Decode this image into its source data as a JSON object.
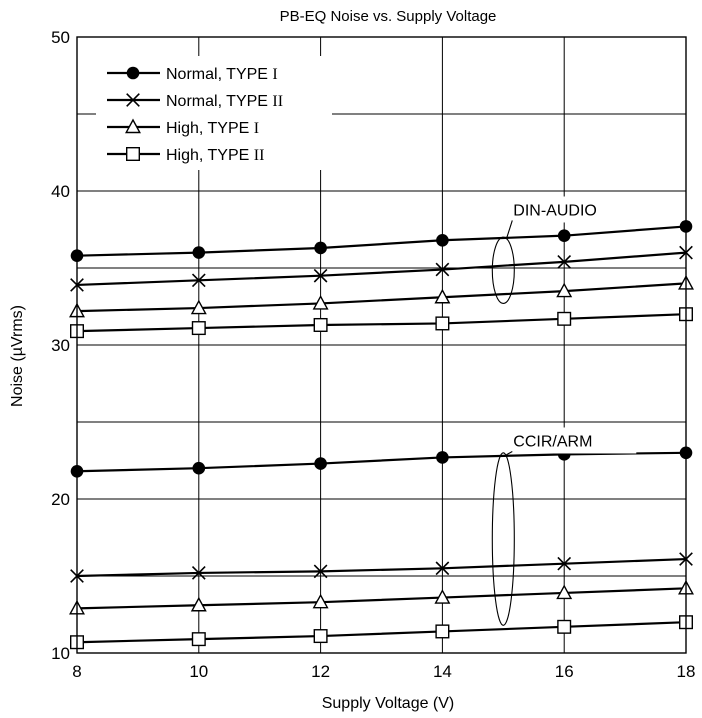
{
  "chart_data": {
    "type": "line",
    "title": "PB-EQ Noise vs. Supply Voltage",
    "xlabel": "Supply Voltage  (V)",
    "ylabel": "Noise  (µVrms)",
    "xlim": [
      8,
      18
    ],
    "ylim": [
      10,
      50
    ],
    "xticks": [
      8,
      10,
      12,
      14,
      16,
      18
    ],
    "yticks": [
      10,
      20,
      30,
      40,
      50
    ],
    "grid": true,
    "legend_position": "top-left",
    "x": [
      8,
      10,
      12,
      14,
      16,
      18
    ],
    "legend": [
      {
        "prefix": "Normal, TYPE ",
        "roman": "I",
        "marker": "circle"
      },
      {
        "prefix": "Normal, TYPE ",
        "roman": "II",
        "marker": "cross"
      },
      {
        "prefix": "High, TYPE ",
        "roman": "I",
        "marker": "triangle"
      },
      {
        "prefix": "High, TYPE ",
        "roman": "II",
        "marker": "square"
      }
    ],
    "series": [
      {
        "name": "Normal, TYPE I",
        "group": "DIN-AUDIO",
        "marker": "circle",
        "values": [
          35.8,
          36.0,
          36.3,
          36.8,
          37.1,
          37.7
        ]
      },
      {
        "name": "Normal, TYPE II",
        "group": "DIN-AUDIO",
        "marker": "cross",
        "values": [
          33.9,
          34.2,
          34.5,
          34.9,
          35.4,
          36.0
        ]
      },
      {
        "name": "High, TYPE I",
        "group": "DIN-AUDIO",
        "marker": "triangle",
        "values": [
          32.2,
          32.4,
          32.7,
          33.1,
          33.5,
          34.0
        ]
      },
      {
        "name": "High, TYPE II",
        "group": "DIN-AUDIO",
        "marker": "square",
        "values": [
          30.9,
          31.1,
          31.3,
          31.4,
          31.7,
          32.0
        ]
      },
      {
        "name": "Normal, TYPE I",
        "group": "CCIR/ARM",
        "marker": "circle",
        "values": [
          21.8,
          22.0,
          22.3,
          22.7,
          22.9,
          23.0
        ]
      },
      {
        "name": "Normal, TYPE II",
        "group": "CCIR/ARM",
        "marker": "cross",
        "values": [
          15.0,
          15.2,
          15.3,
          15.5,
          15.8,
          16.1
        ]
      },
      {
        "name": "High, TYPE I",
        "group": "CCIR/ARM",
        "marker": "triangle",
        "values": [
          12.9,
          13.1,
          13.3,
          13.6,
          13.9,
          14.2
        ]
      },
      {
        "name": "High, TYPE II",
        "group": "CCIR/ARM",
        "marker": "square",
        "values": [
          10.7,
          10.9,
          11.1,
          11.4,
          11.7,
          12.0
        ]
      }
    ],
    "annotations": [
      {
        "text": "DIN-AUDIO",
        "x": 15.0,
        "y": 31.0,
        "label_y": 38.8,
        "span": [
          32.7,
          37.0
        ]
      },
      {
        "text": "CCIR/ARM",
        "x": 15.0,
        "y": 13.5,
        "label_y": 23.8,
        "span": [
          11.8,
          23.0
        ]
      }
    ]
  }
}
